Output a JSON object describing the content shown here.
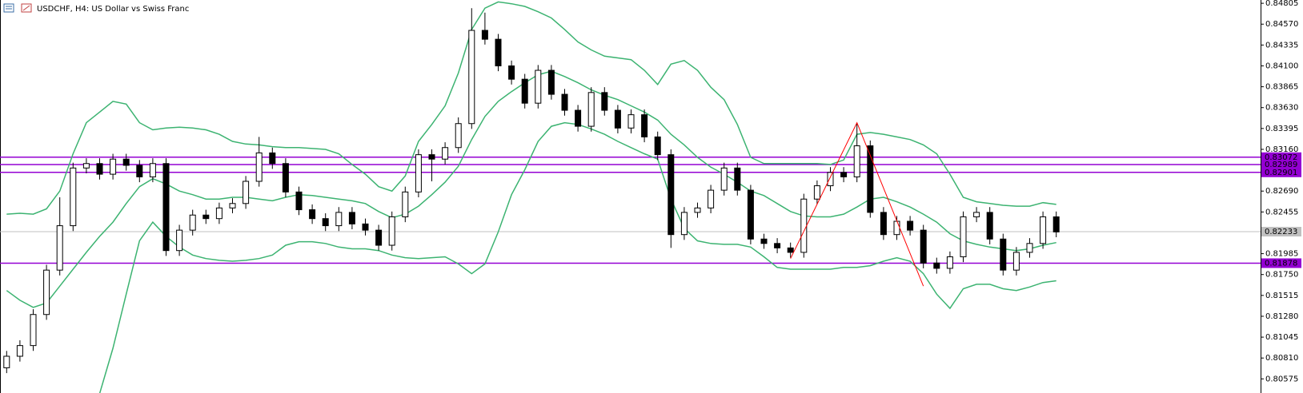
{
  "chart_data": {
    "type": "candlestick",
    "title": "USDCHF, H4:  US Dollar vs Swiss Franc",
    "ylim": [
      0.80416,
      0.84842
    ],
    "yticks": [
      0.84805,
      {
        "value": 0.8457,
        "label": "0.84570"
      },
      0.84335,
      {
        "value": 0.841,
        "label": "0.84100"
      },
      0.83865,
      {
        "value": 0.8363,
        "label": "0.83630"
      },
      0.83395,
      {
        "value": 0.8316,
        "label": "0.83160"
      },
      {
        "value": 0.8269,
        "label": "0.82690"
      },
      0.82455,
      0.81985,
      {
        "value": 0.8175,
        "label": "0.81750"
      },
      0.81515,
      {
        "value": 0.8128,
        "label": "0.81280"
      },
      0.81045,
      {
        "value": 0.8081,
        "label": "0.80810"
      },
      0.80575
    ],
    "grid": false,
    "up_color": "#ffffff",
    "down_color": "#000000",
    "open": [
      0.807,
      0.8083,
      0.8095,
      0.813,
      0.818,
      0.823,
      0.8295,
      0.83,
      0.8288,
      0.8305,
      0.8298,
      0.8285,
      0.83,
      0.8202,
      0.8225,
      0.8242,
      0.8238,
      0.825,
      0.8255,
      0.828,
      0.8312,
      0.83,
      0.8268,
      0.8248,
      0.8238,
      0.823,
      0.8245,
      0.8232,
      0.8225,
      0.8208,
      0.824,
      0.8268,
      0.831,
      0.8305,
      0.8318,
      0.8345,
      0.845,
      0.844,
      0.841,
      0.8395,
      0.8368,
      0.8405,
      0.8378,
      0.836,
      0.8342,
      0.838,
      0.836,
      0.834,
      0.8355,
      0.833,
      0.831,
      0.822,
      0.8245,
      0.825,
      0.827,
      0.8295,
      0.827,
      0.8215,
      0.821,
      0.8205,
      0.82,
      0.826,
      0.8275,
      0.829,
      0.8285,
      0.832,
      0.8245,
      0.822,
      0.8235,
      0.8225,
      0.8188,
      0.8182,
      0.8195,
      0.824,
      0.8245,
      0.8215,
      0.818,
      0.82,
      0.821,
      0.824
    ],
    "high": [
      0.8089,
      0.8101,
      0.8136,
      0.8186,
      0.8262,
      0.8301,
      0.8306,
      0.8306,
      0.8311,
      0.8311,
      0.8304,
      0.8306,
      0.8306,
      0.8231,
      0.8248,
      0.8248,
      0.8256,
      0.8261,
      0.8286,
      0.833,
      0.8318,
      0.8306,
      0.8274,
      0.8254,
      0.8244,
      0.8251,
      0.8251,
      0.8238,
      0.8231,
      0.8246,
      0.8274,
      0.8316,
      0.8316,
      0.8324,
      0.8352,
      0.8475,
      0.847,
      0.8446,
      0.8416,
      0.8401,
      0.8411,
      0.8411,
      0.8384,
      0.8366,
      0.8386,
      0.8386,
      0.8366,
      0.8361,
      0.8361,
      0.8336,
      0.8316,
      0.8251,
      0.8256,
      0.8276,
      0.8301,
      0.8301,
      0.8276,
      0.8221,
      0.8216,
      0.8211,
      0.8266,
      0.8281,
      0.8296,
      0.8296,
      0.8345,
      0.8326,
      0.8251,
      0.8241,
      0.8241,
      0.8231,
      0.8194,
      0.8201,
      0.8246,
      0.8251,
      0.8251,
      0.8221,
      0.8206,
      0.8216,
      0.8246,
      0.8246
    ],
    "low": [
      0.8064,
      0.8077,
      0.8089,
      0.8124,
      0.8174,
      0.8224,
      0.8289,
      0.8282,
      0.8282,
      0.8292,
      0.8279,
      0.8279,
      0.8196,
      0.8196,
      0.8219,
      0.8232,
      0.8232,
      0.8244,
      0.8249,
      0.8274,
      0.8294,
      0.8262,
      0.8242,
      0.8232,
      0.8224,
      0.8224,
      0.8226,
      0.8219,
      0.8202,
      0.8202,
      0.8234,
      0.8262,
      0.828,
      0.8299,
      0.8312,
      0.8339,
      0.8434,
      0.8404,
      0.8389,
      0.8362,
      0.8362,
      0.8372,
      0.8354,
      0.8336,
      0.8336,
      0.8354,
      0.8334,
      0.8334,
      0.8324,
      0.8304,
      0.8205,
      0.8214,
      0.8239,
      0.8244,
      0.8264,
      0.8264,
      0.8209,
      0.8204,
      0.8199,
      0.8194,
      0.8194,
      0.8254,
      0.8269,
      0.8279,
      0.8279,
      0.8239,
      0.8214,
      0.8214,
      0.8219,
      0.8182,
      0.8176,
      0.8176,
      0.8189,
      0.8234,
      0.8209,
      0.8174,
      0.8174,
      0.8194,
      0.8204,
      0.8217
    ],
    "close": [
      0.8083,
      0.8095,
      0.813,
      0.818,
      0.823,
      0.8295,
      0.83,
      0.8288,
      0.8305,
      0.8298,
      0.8285,
      0.83,
      0.8202,
      0.8225,
      0.8242,
      0.8238,
      0.825,
      0.8255,
      0.828,
      0.8312,
      0.83,
      0.8268,
      0.8248,
      0.8238,
      0.823,
      0.8245,
      0.8232,
      0.8225,
      0.8208,
      0.824,
      0.8268,
      0.831,
      0.8305,
      0.8318,
      0.8345,
      0.845,
      0.844,
      0.841,
      0.8395,
      0.8368,
      0.8405,
      0.8378,
      0.836,
      0.8342,
      0.838,
      0.836,
      0.834,
      0.8355,
      0.833,
      0.831,
      0.822,
      0.8245,
      0.825,
      0.827,
      0.8295,
      0.827,
      0.8215,
      0.821,
      0.8205,
      0.82,
      0.826,
      0.8275,
      0.829,
      0.8285,
      0.832,
      0.8245,
      0.822,
      0.8235,
      0.8225,
      0.8188,
      0.8182,
      0.8195,
      0.824,
      0.8245,
      0.8215,
      0.818,
      0.82,
      0.821,
      0.824,
      0.8223
    ],
    "bands": [
      {
        "color": "#3cb371",
        "values": [
          0.8243,
          0.8244,
          0.8243,
          0.8249,
          0.8269,
          0.8311,
          0.8346,
          0.8358,
          0.837,
          0.8367,
          0.8346,
          0.8338,
          0.834,
          0.8341,
          0.834,
          0.8338,
          0.8333,
          0.8325,
          0.8322,
          0.8321,
          0.8319,
          0.8318,
          0.8318,
          0.8317,
          0.8316,
          0.8311,
          0.8299,
          0.8288,
          0.8274,
          0.8269,
          0.8286,
          0.8325,
          0.8344,
          0.8365,
          0.8402,
          0.8451,
          0.8475,
          0.8482,
          0.848,
          0.8477,
          0.8471,
          0.8464,
          0.8451,
          0.8437,
          0.8428,
          0.8421,
          0.8419,
          0.8417,
          0.8405,
          0.8389,
          0.8412,
          0.8416,
          0.8405,
          0.8386,
          0.8372,
          0.8344,
          0.8307,
          0.83,
          0.83,
          0.83,
          0.83,
          0.83,
          0.8299,
          0.8304,
          0.8333,
          0.8335,
          0.8333,
          0.833,
          0.8327,
          0.8321,
          0.8311,
          0.8288,
          0.8262,
          0.8257,
          0.8255,
          0.8253,
          0.8252,
          0.8252,
          0.8256,
          0.8254
        ]
      },
      {
        "color": "#3cb371",
        "values": [
          0.8157,
          0.8146,
          0.8138,
          0.8143,
          0.8162,
          0.8181,
          0.82,
          0.8218,
          0.8234,
          0.8255,
          0.8274,
          0.8283,
          0.8277,
          0.8269,
          0.8265,
          0.826,
          0.826,
          0.8262,
          0.8262,
          0.826,
          0.8258,
          0.8262,
          0.8265,
          0.8264,
          0.8262,
          0.826,
          0.8258,
          0.8255,
          0.8246,
          0.8239,
          0.8243,
          0.8252,
          0.8265,
          0.8279,
          0.8297,
          0.8327,
          0.8353,
          0.837,
          0.8381,
          0.8391,
          0.84,
          0.8404,
          0.8398,
          0.8391,
          0.8383,
          0.8377,
          0.8372,
          0.8365,
          0.8358,
          0.8349,
          0.8333,
          0.8321,
          0.8307,
          0.8296,
          0.8288,
          0.8279,
          0.8269,
          0.8264,
          0.8255,
          0.8246,
          0.8241,
          0.824,
          0.824,
          0.8243,
          0.8251,
          0.826,
          0.8262,
          0.8257,
          0.8251,
          0.8243,
          0.8234,
          0.8221,
          0.8213,
          0.8209,
          0.8206,
          0.8204,
          0.8202,
          0.8204,
          0.8208,
          0.8211
        ]
      },
      {
        "color": "#3cb371",
        "values": [
          null,
          null,
          null,
          null,
          null,
          null,
          null,
          0.8041,
          0.8092,
          0.8153,
          0.8213,
          0.8234,
          0.8218,
          0.8206,
          0.8197,
          0.8193,
          0.8191,
          0.819,
          0.8191,
          0.8193,
          0.8197,
          0.8208,
          0.8212,
          0.8212,
          0.821,
          0.8206,
          0.8204,
          0.8204,
          0.8202,
          0.8197,
          0.8194,
          0.8193,
          0.8194,
          0.8195,
          0.8187,
          0.8176,
          0.8187,
          0.8223,
          0.8265,
          0.8293,
          0.8325,
          0.8342,
          0.8346,
          0.8344,
          0.8339,
          0.8333,
          0.8325,
          0.8318,
          0.8311,
          0.8305,
          0.826,
          0.8227,
          0.8213,
          0.821,
          0.8209,
          0.8209,
          0.8206,
          0.8195,
          0.8183,
          0.8181,
          0.8181,
          0.8181,
          0.8181,
          0.8183,
          0.8183,
          0.8185,
          0.819,
          0.8194,
          0.819,
          0.8176,
          0.8153,
          0.8137,
          0.8159,
          0.8164,
          0.8164,
          0.8159,
          0.8157,
          0.8161,
          0.8166,
          0.8168
        ]
      }
    ],
    "zigzag": {
      "color": "#ff0000",
      "x": [
        59,
        64,
        69
      ],
      "values": [
        0.8193,
        0.8346,
        0.8162
      ]
    },
    "levels": [
      0.83072,
      0.82989,
      0.82901,
      0.81878
    ],
    "level_color": "#9400d3",
    "current_price": 0.82233,
    "current_color": "#c0c0c0"
  }
}
